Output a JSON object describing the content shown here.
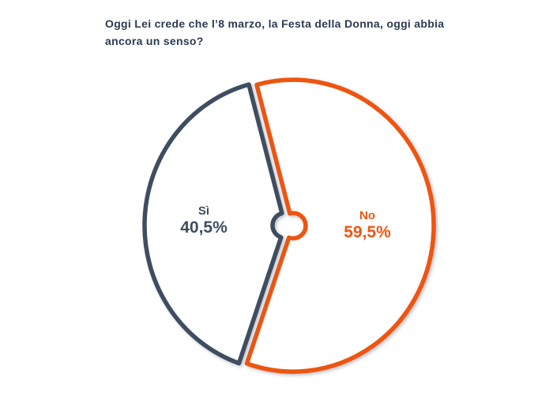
{
  "title": {
    "line1": "Oggi Lei crede che l’8 marzo, la Festa della Donna, oggi abbia",
    "line2": "ancora un senso?",
    "full": "Oggi Lei crede che l’8 marzo, la Festa della Donna, oggi abbia ancora un senso?"
  },
  "chart_data": {
    "type": "pie",
    "title": "Oggi Lei crede che l’8 marzo, la Festa della Donna, oggi abbia ancora un senso?",
    "unit": "%",
    "categories": [
      "No",
      "Sì"
    ],
    "values": [
      59.5,
      40.5
    ],
    "slices": [
      {
        "label": "No",
        "value": 59.5,
        "display_value": "59,5%",
        "color": "#EE5511"
      },
      {
        "label": "Sì",
        "value": 40.5,
        "display_value": "40,5%",
        "color": "#3F4D60"
      }
    ],
    "start_angle_deg": -15,
    "direction": "clockwise",
    "donut_hole": true,
    "style": "white-filled slices with thick colored outlines, tiny center hole, slices slightly exploded",
    "legend_position": "labels inside slices",
    "background": "#FFFFFF"
  },
  "colors": {
    "title": "#2B3A52",
    "no_accent": "#EE5511",
    "si_accent": "#3F4D60",
    "background": "#FFFFFF"
  }
}
